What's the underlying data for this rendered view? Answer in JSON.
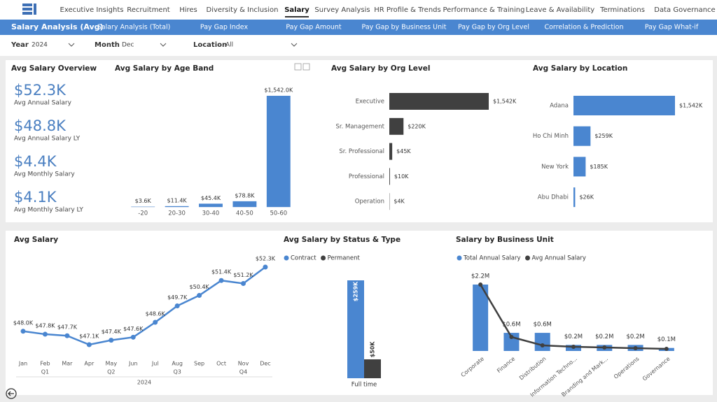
{
  "nav": {
    "tabs": [
      "Executive Insights",
      "Recruitment",
      "Hires",
      "Diversity & Inclusion",
      "Salary",
      "Survey Analysis",
      "HR Profile & Trends",
      "Performance & Training",
      "Leave & Availability",
      "Terminations",
      "Data Governance"
    ],
    "active": 4
  },
  "subnav": {
    "title": "Salary Analysis (Avg)",
    "items": [
      "Salary Analysis (Total)",
      "Pay Gap Index",
      "Pay Gap Amount",
      "Pay Gap by Business Unit",
      "Pay Gap by Org Level",
      "Correlation & Prediction",
      "Pay Gap What-if"
    ]
  },
  "filters": [
    {
      "label": "Year",
      "value": "2024"
    },
    {
      "label": "Month",
      "value": "Dec"
    },
    {
      "label": "Location",
      "value": "All"
    }
  ],
  "kpis": {
    "title": "Avg Salary Overview",
    "items": [
      {
        "value": "$52.3K",
        "label": "Avg Annual Salary"
      },
      {
        "value": "$48.8K",
        "label": "Avg Annual Salary LY"
      },
      {
        "value": "$4.4K",
        "label": "Avg Monthly Salary"
      },
      {
        "value": "$4.1K",
        "label": "Avg Monthly Salary LY"
      }
    ]
  },
  "chart_data": [
    {
      "type": "bar",
      "title": "Avg Salary by Age Band",
      "categories": [
        "-20",
        "20-30",
        "30-40",
        "40-50",
        "50-60"
      ],
      "values": [
        3.6,
        11.4,
        45.4,
        78.8,
        1542.0
      ],
      "value_labels": [
        "$3.6K",
        "$11.4K",
        "$45.4K",
        "$78.8K",
        "$1,542.0K"
      ],
      "color": "#4a86d0"
    },
    {
      "type": "hbar",
      "title": "Avg Salary by Org Level",
      "categories": [
        "Executive",
        "Sr. Management",
        "Sr. Professional",
        "Professional",
        "Operation"
      ],
      "values": [
        1542,
        220,
        45,
        10,
        4
      ],
      "value_labels": [
        "$1,542K",
        "$220K",
        "$45K",
        "$10K",
        "$4K"
      ],
      "color": "#404040"
    },
    {
      "type": "hbar",
      "title": "Avg Salary by Location",
      "categories": [
        "Adana",
        "Ho Chi Minh",
        "New York",
        "Abu Dhabi"
      ],
      "values": [
        1542,
        259,
        185,
        26
      ],
      "value_labels": [
        "$1,542K",
        "$259K",
        "$185K",
        "$26K"
      ],
      "color": "#4a86d0"
    },
    {
      "type": "line",
      "title": "Avg Salary",
      "categories": [
        "Jan",
        "Feb",
        "Mar",
        "Apr",
        "May",
        "Jun",
        "Jul",
        "Aug",
        "Sep",
        "Oct",
        "Nov",
        "Dec"
      ],
      "values": [
        48.0,
        47.8,
        47.7,
        47.1,
        47.4,
        47.6,
        48.6,
        49.7,
        50.4,
        51.4,
        51.2,
        52.3
      ],
      "value_labels": [
        "$48.0K",
        "$47.8K",
        "$47.7K",
        "$47.1K",
        "$47.4K",
        "$47.6K",
        "$48.6K",
        "$49.7K",
        "$50.4K",
        "$51.4K",
        "$51.2K",
        "$52.3K"
      ],
      "quarters": [
        "Q1",
        "Q2",
        "Q3",
        "Q4"
      ],
      "year": "2024",
      "color": "#4a86d0"
    },
    {
      "type": "grouped_bar",
      "title": "Avg Salary by Status & Type",
      "categories": [
        "Full time"
      ],
      "series": [
        {
          "name": "Contract",
          "color": "#4a86d0",
          "values": [
            259
          ],
          "value_labels": [
            "$259K"
          ]
        },
        {
          "name": "Permanent",
          "color": "#404040",
          "values": [
            50
          ],
          "value_labels": [
            "$50K"
          ]
        }
      ]
    },
    {
      "type": "combo",
      "title": "Salary by Business Unit",
      "categories": [
        "Corporate",
        "Finance",
        "Distribution",
        "Information Techno...",
        "Branding and Mark...",
        "Operations",
        "Governance"
      ],
      "series": [
        {
          "name": "Total Annual Salary",
          "type": "bar",
          "color": "#4a86d0",
          "values": [
            2.2,
            0.6,
            0.6,
            0.2,
            0.2,
            0.2,
            0.1
          ],
          "value_labels": [
            "$2.2M",
            "$0.6M",
            "$0.6M",
            "$0.2M",
            "$0.2M",
            "$0.2M",
            "$0.1M"
          ]
        },
        {
          "name": "Avg Annual Salary",
          "type": "line",
          "color": "#404040",
          "values": [
            95,
            20,
            8,
            6,
            5,
            4,
            3
          ]
        }
      ]
    }
  ]
}
